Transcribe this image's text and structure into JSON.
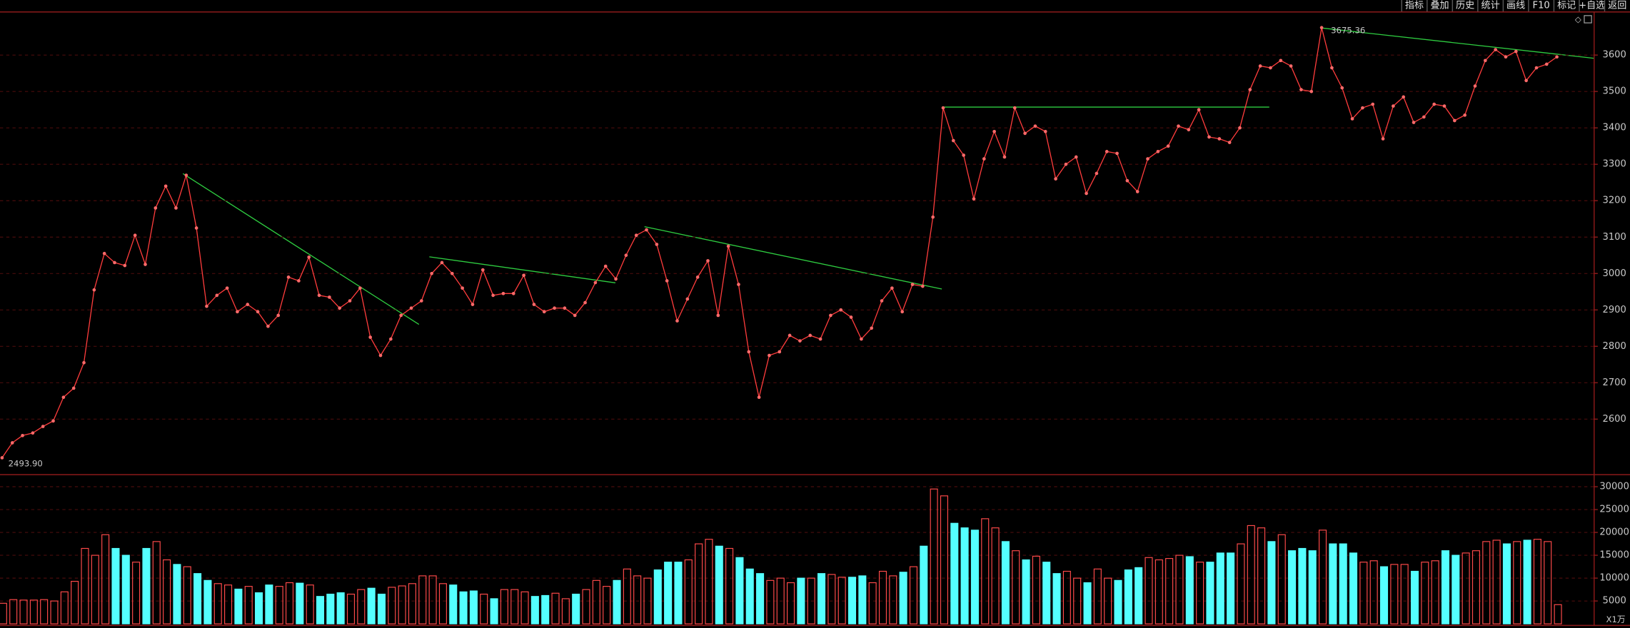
{
  "toolbar": [
    "指标",
    "叠加",
    "历史",
    "统计",
    "画线",
    "F10",
    "标记",
    "+自选",
    "返回"
  ],
  "chart_data": [
    {
      "type": "line",
      "color": "#ff3c3c",
      "marker_color": "#ff6a6a",
      "annotations": [
        "2493.90",
        "3675.36"
      ],
      "values": [
        2493.9,
        2535,
        2555,
        2562,
        2580,
        2595,
        2660,
        2685,
        2755,
        2955,
        3055,
        3030,
        3022,
        3105,
        3025,
        3180,
        3240,
        3180,
        3270,
        3125,
        2910,
        2940,
        2960,
        2895,
        2915,
        2895,
        2855,
        2885,
        2990,
        2980,
        3045,
        2940,
        2935,
        2905,
        2925,
        2960,
        2825,
        2775,
        2820,
        2885,
        2905,
        2925,
        3000,
        3030,
        3000,
        2960,
        2915,
        3010,
        2940,
        2945,
        2945,
        2995,
        2915,
        2895,
        2905,
        2905,
        2885,
        2920,
        2975,
        3020,
        2985,
        3050,
        3105,
        3120,
        3080,
        2980,
        2870,
        2930,
        2990,
        3035,
        2885,
        3075,
        2970,
        2785,
        2660,
        2775,
        2785,
        2830,
        2815,
        2830,
        2820,
        2885,
        2900,
        2880,
        2820,
        2850,
        2925,
        2960,
        2895,
        2970,
        2965,
        3155,
        3455,
        3365,
        3325,
        3205,
        3315,
        3390,
        3320,
        3455,
        3385,
        3405,
        3390,
        3260,
        3300,
        3320,
        3220,
        3275,
        3335,
        3330,
        3255,
        3225,
        3315,
        3335,
        3350,
        3405,
        3395,
        3450,
        3375,
        3370,
        3360,
        3400,
        3505,
        3570,
        3565,
        3585,
        3570,
        3505,
        3500,
        3675.36,
        3565,
        3510,
        3425,
        3455,
        3465,
        3370,
        3460,
        3485,
        3415,
        3430,
        3465,
        3460,
        3420,
        3435,
        3515,
        3585,
        3615,
        3595,
        3610,
        3530,
        3565,
        3575,
        3595
      ],
      "ylim": [
        2449,
        3717
      ],
      "yticks": [
        2600,
        2700,
        2800,
        2900,
        3000,
        3100,
        3200,
        3300,
        3400,
        3500,
        3600
      ],
      "grid": true
    },
    {
      "type": "bar",
      "up_color": "#ff4a4a",
      "down_color": "#54ffff",
      "unit": "X1万",
      "values": [
        4500,
        5300,
        5200,
        5200,
        5300,
        5000,
        7000,
        9300,
        16500,
        15000,
        19500,
        16500,
        15000,
        13500,
        16500,
        18000,
        14000,
        13000,
        12500,
        11000,
        9500,
        8800,
        8500,
        7600,
        8200,
        6800,
        8500,
        8200,
        9000,
        8900,
        8500,
        6000,
        6500,
        6800,
        6500,
        7500,
        7800,
        6500,
        8000,
        8300,
        8800,
        10500,
        10500,
        8800,
        8500,
        7000,
        7200,
        6500,
        5500,
        7500,
        7500,
        7000,
        6000,
        6200,
        6700,
        5500,
        6500,
        7500,
        9500,
        8200,
        9500,
        12000,
        10500,
        10000,
        11800,
        13500,
        13500,
        14000,
        17500,
        18500,
        17000,
        16500,
        14500,
        12000,
        11000,
        9500,
        10000,
        9000,
        10000,
        10000,
        11000,
        10800,
        10200,
        10200,
        10500,
        9000,
        11500,
        10500,
        11300,
        12500,
        17000,
        29500,
        28000,
        22000,
        21000,
        20500,
        23000,
        21000,
        18000,
        16000,
        14000,
        14800,
        13500,
        11000,
        11500,
        10000,
        9000,
        12000,
        10000,
        9500,
        11800,
        12300,
        14500,
        14000,
        14300,
        15000,
        14700,
        13500,
        13500,
        15500,
        15500,
        17500,
        21500,
        21000,
        18000,
        19500,
        16000,
        16500,
        16000,
        20500,
        17500,
        17500,
        15500,
        13500,
        13800,
        12500,
        13000,
        13000,
        11500,
        13500,
        13800,
        16000,
        15000,
        15500,
        16000,
        18000,
        18300,
        17500,
        18000,
        18300,
        18500,
        18000,
        4200
      ],
      "ylim": [
        0,
        32300
      ],
      "yticks": [
        5000,
        10000,
        15000,
        20000,
        25000,
        30000
      ],
      "grid": true
    }
  ]
}
